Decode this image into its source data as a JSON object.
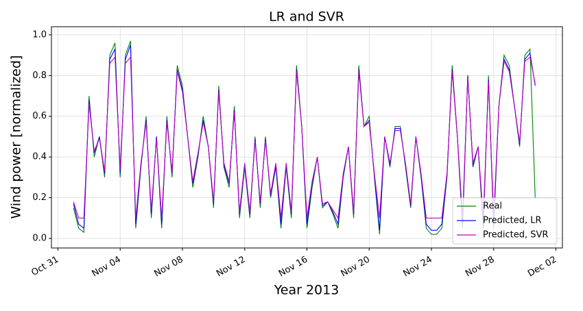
{
  "chart_data": {
    "type": "line",
    "title": "LR and SVR",
    "xlabel": "Year 2013",
    "ylabel": "Wind power [normalized]",
    "x": [
      "2013-11-01 00:00",
      "2013-11-01 08:00",
      "2013-11-01 16:00",
      "2013-11-02 00:00",
      "2013-11-02 08:00",
      "2013-11-02 16:00",
      "2013-11-03 00:00",
      "2013-11-03 08:00",
      "2013-11-03 16:00",
      "2013-11-04 00:00",
      "2013-11-04 08:00",
      "2013-11-04 16:00",
      "2013-11-05 00:00",
      "2013-11-05 08:00",
      "2013-11-05 16:00",
      "2013-11-06 00:00",
      "2013-11-06 08:00",
      "2013-11-06 16:00",
      "2013-11-07 00:00",
      "2013-11-07 08:00",
      "2013-11-07 16:00",
      "2013-11-08 00:00",
      "2013-11-08 08:00",
      "2013-11-08 16:00",
      "2013-11-09 00:00",
      "2013-11-09 08:00",
      "2013-11-09 16:00",
      "2013-11-10 00:00",
      "2013-11-10 08:00",
      "2013-11-10 16:00",
      "2013-11-11 00:00",
      "2013-11-11 08:00",
      "2013-11-11 16:00",
      "2013-11-12 00:00",
      "2013-11-12 08:00",
      "2013-11-12 16:00",
      "2013-11-13 00:00",
      "2013-11-13 08:00",
      "2013-11-13 16:00",
      "2013-11-14 00:00",
      "2013-11-14 08:00",
      "2013-11-14 16:00",
      "2013-11-15 00:00",
      "2013-11-15 08:00",
      "2013-11-15 16:00",
      "2013-11-16 00:00",
      "2013-11-16 08:00",
      "2013-11-16 16:00",
      "2013-11-17 00:00",
      "2013-11-17 08:00",
      "2013-11-17 16:00",
      "2013-11-18 00:00",
      "2013-11-18 08:00",
      "2013-11-18 16:00",
      "2013-11-19 00:00",
      "2013-11-19 08:00",
      "2013-11-19 16:00",
      "2013-11-20 00:00",
      "2013-11-20 08:00",
      "2013-11-20 16:00",
      "2013-11-21 00:00",
      "2013-11-21 08:00",
      "2013-11-21 16:00",
      "2013-11-22 00:00",
      "2013-11-22 08:00",
      "2013-11-22 16:00",
      "2013-11-23 00:00",
      "2013-11-23 08:00",
      "2013-11-23 16:00",
      "2013-11-24 00:00",
      "2013-11-24 08:00",
      "2013-11-24 16:00",
      "2013-11-25 00:00",
      "2013-11-25 08:00",
      "2013-11-25 16:00",
      "2013-11-26 00:00",
      "2013-11-26 08:00",
      "2013-11-26 16:00",
      "2013-11-27 00:00",
      "2013-11-27 08:00",
      "2013-11-27 16:00",
      "2013-11-28 00:00",
      "2013-11-28 08:00",
      "2013-11-28 16:00",
      "2013-11-29 00:00",
      "2013-11-29 08:00",
      "2013-11-29 16:00",
      "2013-11-30 00:00",
      "2013-11-30 08:00",
      "2013-11-30 16:00"
    ],
    "series": [
      {
        "name": "Real",
        "color": "#008000",
        "values": [
          0.15,
          0.05,
          0.03,
          0.7,
          0.4,
          0.5,
          0.3,
          0.9,
          0.96,
          0.3,
          0.9,
          0.97,
          0.05,
          0.35,
          0.6,
          0.1,
          0.5,
          0.05,
          0.6,
          0.3,
          0.85,
          0.75,
          0.5,
          0.25,
          0.4,
          0.6,
          0.45,
          0.15,
          0.75,
          0.35,
          0.25,
          0.65,
          0.1,
          0.35,
          0.1,
          0.5,
          0.15,
          0.5,
          0.2,
          0.35,
          0.05,
          0.35,
          0.1,
          0.85,
          0.55,
          0.05,
          0.25,
          0.4,
          0.15,
          0.18,
          0.12,
          0.05,
          0.3,
          0.45,
          0.1,
          0.85,
          0.55,
          0.6,
          0.3,
          0.02,
          0.5,
          0.35,
          0.55,
          0.55,
          0.35,
          0.15,
          0.5,
          0.3,
          0.05,
          0.02,
          0.02,
          0.05,
          0.3,
          0.85,
          0.5,
          0.05,
          0.8,
          0.35,
          0.45,
          0.05,
          0.8,
          0.05,
          0.65,
          0.9,
          0.85,
          0.65,
          0.45,
          0.9,
          0.93,
          0.2
        ]
      },
      {
        "name": "Predicted, LR",
        "color": "#0000ff",
        "values": [
          0.17,
          0.07,
          0.05,
          0.68,
          0.42,
          0.5,
          0.32,
          0.88,
          0.93,
          0.32,
          0.88,
          0.95,
          0.07,
          0.36,
          0.58,
          0.12,
          0.5,
          0.07,
          0.58,
          0.32,
          0.83,
          0.73,
          0.5,
          0.27,
          0.41,
          0.58,
          0.45,
          0.17,
          0.73,
          0.36,
          0.27,
          0.63,
          0.12,
          0.36,
          0.12,
          0.49,
          0.17,
          0.49,
          0.21,
          0.36,
          0.07,
          0.36,
          0.12,
          0.83,
          0.55,
          0.07,
          0.27,
          0.4,
          0.16,
          0.18,
          0.13,
          0.07,
          0.31,
          0.45,
          0.12,
          0.83,
          0.55,
          0.58,
          0.31,
          0.04,
          0.5,
          0.36,
          0.54,
          0.54,
          0.36,
          0.16,
          0.5,
          0.31,
          0.07,
          0.04,
          0.04,
          0.07,
          0.31,
          0.83,
          0.5,
          0.07,
          0.8,
          0.36,
          0.45,
          0.07,
          0.78,
          0.07,
          0.65,
          0.88,
          0.83,
          0.65,
          0.46,
          0.88,
          0.91,
          0.75
        ]
      },
      {
        "name": "Predicted, SVR",
        "color": "#bf00bf",
        "values": [
          0.18,
          0.1,
          0.1,
          0.66,
          0.43,
          0.49,
          0.33,
          0.86,
          0.89,
          0.34,
          0.86,
          0.89,
          0.1,
          0.37,
          0.57,
          0.14,
          0.49,
          0.1,
          0.57,
          0.33,
          0.82,
          0.72,
          0.5,
          0.28,
          0.42,
          0.57,
          0.45,
          0.18,
          0.72,
          0.37,
          0.28,
          0.62,
          0.13,
          0.37,
          0.13,
          0.48,
          0.18,
          0.48,
          0.22,
          0.37,
          0.1,
          0.37,
          0.13,
          0.82,
          0.55,
          0.1,
          0.28,
          0.4,
          0.17,
          0.18,
          0.14,
          0.1,
          0.32,
          0.45,
          0.13,
          0.82,
          0.55,
          0.57,
          0.32,
          0.1,
          0.5,
          0.37,
          0.53,
          0.53,
          0.37,
          0.17,
          0.5,
          0.32,
          0.1,
          0.1,
          0.1,
          0.1,
          0.32,
          0.82,
          0.5,
          0.1,
          0.79,
          0.37,
          0.45,
          0.1,
          0.77,
          0.1,
          0.65,
          0.87,
          0.82,
          0.65,
          0.47,
          0.87,
          0.89,
          0.76
        ]
      }
    ],
    "xlim": [
      "2013-10-30 14:00",
      "2013-12-02 10:00"
    ],
    "xticks": [
      {
        "value": "2013-10-31 00:00",
        "label": "Oct 31"
      },
      {
        "value": "2013-11-04 00:00",
        "label": "Nov 04"
      },
      {
        "value": "2013-11-08 00:00",
        "label": "Nov 08"
      },
      {
        "value": "2013-11-12 00:00",
        "label": "Nov 12"
      },
      {
        "value": "2013-11-16 00:00",
        "label": "Nov 16"
      },
      {
        "value": "2013-11-20 00:00",
        "label": "Nov 20"
      },
      {
        "value": "2013-11-24 00:00",
        "label": "Nov 24"
      },
      {
        "value": "2013-11-28 00:00",
        "label": "Nov 28"
      },
      {
        "value": "2013-12-02 00:00",
        "label": "Dec 02"
      }
    ],
    "ylim": [
      -0.047,
      1.04
    ],
    "yticks": [
      {
        "value": 0,
        "label": "0.0"
      },
      0.2,
      0.4,
      0.6,
      0.8,
      {
        "value": 1,
        "label": "1.0"
      }
    ],
    "grid": true,
    "legend": "lower right"
  }
}
